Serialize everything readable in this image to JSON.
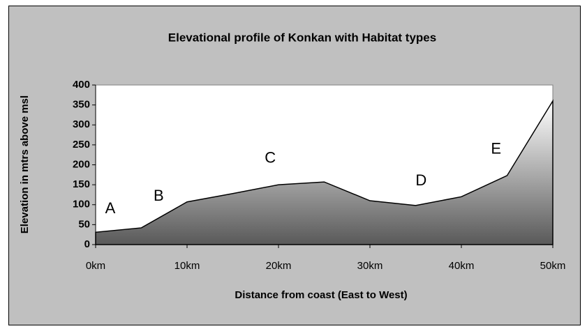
{
  "chart_data": {
    "type": "area",
    "title": "Elevational profile of Konkan with Habitat types",
    "x_label": "Distance from coast (East to West)",
    "y_label": "Elevation in mtrs above msl",
    "x": [
      0,
      5,
      10,
      15,
      20,
      25,
      30,
      35,
      40,
      45,
      50
    ],
    "series": [
      {
        "name": "Elevation",
        "color": "#595959",
        "values": [
          31,
          42,
          107,
          128,
          150,
          157,
          110,
          98,
          120,
          173,
          360
        ]
      }
    ],
    "fill_gradient": [
      "#ffffff",
      "#595959"
    ],
    "xlim": [
      0,
      50
    ],
    "xticks": [
      {
        "value": 0,
        "label": "0km"
      },
      {
        "value": 10,
        "label": "10km"
      },
      {
        "value": 20,
        "label": "20km"
      },
      {
        "value": 30,
        "label": "30km"
      },
      {
        "value": 40,
        "label": "40km"
      },
      {
        "value": 50,
        "label": "50km"
      }
    ],
    "ylim": [
      0,
      400
    ],
    "yticks": [
      0,
      50,
      100,
      150,
      200,
      250,
      300,
      350,
      400
    ],
    "annotations": [
      {
        "text": "A",
        "x": 1.6,
        "y": 89
      },
      {
        "text": "B",
        "x": 6.9,
        "y": 120
      },
      {
        "text": "C",
        "x": 19.1,
        "y": 215
      },
      {
        "text": "D",
        "x": 35.6,
        "y": 159
      },
      {
        "text": "E",
        "x": 43.8,
        "y": 238
      }
    ]
  }
}
